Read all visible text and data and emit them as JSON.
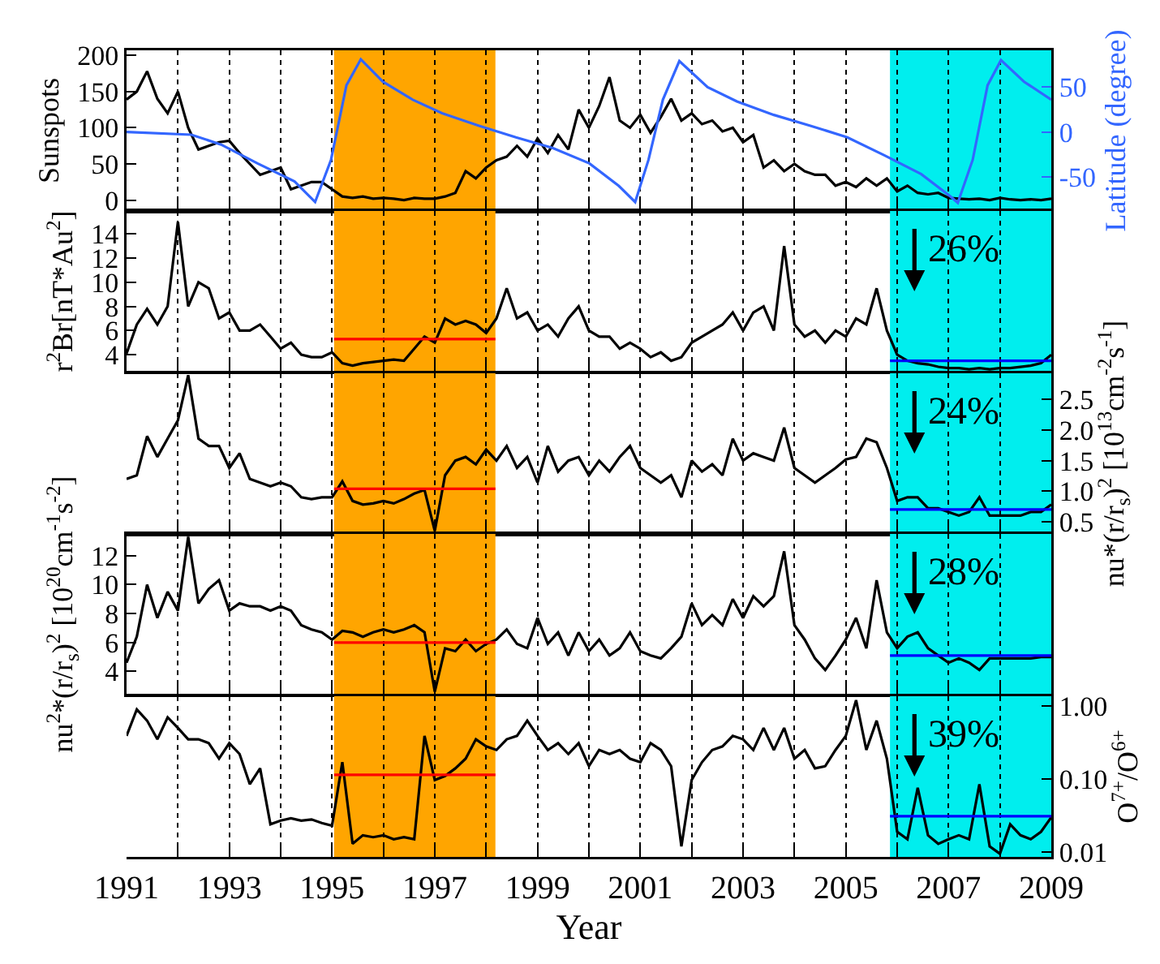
{
  "chart_data": [
    {
      "type": "line",
      "ylabel": "Sunspots",
      "y2label": "Latitude (degree)",
      "xlim": [
        1991,
        2009
      ],
      "xticks": [
        1991,
        {
          "value": 1992,
          "label": null
        },
        1993,
        {
          "value": 1994,
          "label": null
        },
        1995,
        {
          "value": 1996,
          "label": null
        },
        1997,
        {
          "value": 1998,
          "label": null
        },
        1999,
        {
          "value": 2000,
          "label": null
        },
        2001,
        {
          "value": 2002,
          "label": null
        },
        2003,
        {
          "value": 2004,
          "label": null
        },
        2005,
        {
          "value": 2006,
          "label": null
        },
        2007,
        {
          "value": 2008,
          "label": null
        },
        2009
      ],
      "ylim": [
        -15,
        207
      ],
      "yticks": [
        0,
        50,
        100,
        150,
        200
      ],
      "y2lim": [
        -88,
        91
      ],
      "y2ticks": [
        -50,
        0,
        50
      ],
      "grid": "x",
      "tick_labels": "y",
      "x": [
        1991,
        1991.2,
        1991.4,
        1991.6,
        1991.8,
        1992,
        1992.2,
        1992.4,
        1992.6,
        1992.8,
        1993,
        1993.2,
        1993.4,
        1993.6,
        1993.8,
        1994,
        1994.2,
        1994.4,
        1994.6,
        1994.8,
        1995,
        1995.2,
        1995.4,
        1995.6,
        1995.8,
        1996,
        1996.2,
        1996.4,
        1996.6,
        1996.8,
        1997,
        1997.2,
        1997.4,
        1997.6,
        1997.8,
        1998,
        1998.2,
        1998.4,
        1998.6,
        1998.8,
        1999,
        1999.2,
        1999.4,
        1999.6,
        1999.8,
        2000,
        2000.2,
        2000.4,
        2000.6,
        2000.8,
        2001,
        2001.2,
        2001.4,
        2001.6,
        2001.8,
        2002,
        2002.2,
        2002.4,
        2002.6,
        2002.8,
        2003,
        2003.2,
        2003.4,
        2003.6,
        2003.8,
        2004,
        2004.2,
        2004.4,
        2004.6,
        2004.8,
        2005,
        2005.2,
        2005.4,
        2005.6,
        2005.8,
        2006,
        2006.2,
        2006.4,
        2006.6,
        2006.8,
        2007,
        2007.2,
        2007.4,
        2007.6,
        2007.8,
        2008,
        2008.2,
        2008.4,
        2008.6,
        2008.8,
        2009
      ],
      "bands": [
        {
          "axis": "x",
          "from": 1995.04,
          "to": 1998.18,
          "color": "#ffa500"
        },
        {
          "axis": "x",
          "from": 2005.86,
          "to": 2009,
          "color": "#00eeee"
        }
      ],
      "series": [
        {
          "color": "#000000",
          "values": [
            139,
            150,
            178,
            140,
            120,
            150,
            100,
            70,
            75,
            80,
            82,
            65,
            50,
            35,
            40,
            45,
            15,
            20,
            25,
            25,
            15,
            5,
            3,
            5,
            2,
            3,
            2,
            0,
            3,
            2,
            2,
            5,
            10,
            40,
            30,
            45,
            55,
            60,
            75,
            60,
            85,
            65,
            90,
            70,
            125,
            100,
            130,
            170,
            110,
            100,
            118,
            93,
            115,
            140,
            110,
            120,
            105,
            110,
            95,
            100,
            80,
            90,
            45,
            55,
            40,
            50,
            40,
            35,
            35,
            20,
            25,
            18,
            30,
            20,
            30,
            12,
            20,
            10,
            8,
            10,
            3,
            2,
            1,
            2,
            0,
            3,
            1,
            0,
            1,
            0,
            2
          ]
        },
        {
          "color": "#3366ff",
          "axis": "y2",
          "x": [
            1991,
            1992.26,
            1992.84,
            1993.55,
            1994.27,
            1994.67,
            1994.98,
            1995.28,
            1995.56,
            1995.99,
            1996.57,
            1997.14,
            1997.86,
            1998.58,
            1999.3,
            2000.01,
            2000.58,
            2000.9,
            2001.16,
            2001.44,
            2001.76,
            2002.31,
            2002.88,
            2003.6,
            2004.31,
            2005.03,
            2005.75,
            2006.47,
            2007.04,
            2007.18,
            2007.47,
            2007.76,
            2008.02,
            2008.47,
            2009
          ],
          "values": [
            0,
            -3,
            -14,
            -35,
            -55,
            -78,
            -31,
            52,
            81,
            56,
            36,
            21,
            7,
            -6,
            -18,
            -35,
            -60,
            -78,
            -31,
            36,
            79,
            50,
            34,
            19,
            7,
            -6,
            -26,
            -47,
            -72,
            -79,
            -31,
            52,
            80,
            56,
            36
          ]
        }
      ]
    },
    {
      "type": "line",
      "ylabel": "r$^{2}$Br[nT*Au$^{2}$]",
      "xlim": [
        1991,
        2009
      ],
      "xticks": [
        1991,
        {
          "value": 1992,
          "label": null
        },
        1993,
        {
          "value": 1994,
          "label": null
        },
        1995,
        {
          "value": 1996,
          "label": null
        },
        1997,
        {
          "value": 1998,
          "label": null
        },
        1999,
        {
          "value": 2000,
          "label": null
        },
        2001,
        {
          "value": 2002,
          "label": null
        },
        2003,
        {
          "value": 2004,
          "label": null
        },
        2005,
        {
          "value": 2006,
          "label": null
        },
        2007,
        {
          "value": 2008,
          "label": null
        },
        2009
      ],
      "ylim": [
        2.6,
        15.9
      ],
      "yticks": [
        4,
        6,
        8,
        10,
        12,
        14
      ],
      "grid": "x",
      "tick_labels": "y",
      "x": [
        1991,
        1991.2,
        1991.4,
        1991.6,
        1991.8,
        1992,
        1992.2,
        1992.4,
        1992.6,
        1992.8,
        1993,
        1993.2,
        1993.4,
        1993.6,
        1993.8,
        1994,
        1994.2,
        1994.4,
        1994.6,
        1994.8,
        1995,
        1995.2,
        1995.4,
        1995.6,
        1995.8,
        1996,
        1996.2,
        1996.4,
        1996.6,
        1996.8,
        1997,
        1997.2,
        1997.4,
        1997.6,
        1997.8,
        1998,
        1998.2,
        1998.4,
        1998.6,
        1998.8,
        1999,
        1999.2,
        1999.4,
        1999.6,
        1999.8,
        2000,
        2000.2,
        2000.4,
        2000.6,
        2000.8,
        2001,
        2001.2,
        2001.4,
        2001.6,
        2001.8,
        2002,
        2002.2,
        2002.4,
        2002.6,
        2002.8,
        2003,
        2003.2,
        2003.4,
        2003.6,
        2003.8,
        2004,
        2004.2,
        2004.4,
        2004.6,
        2004.8,
        2005,
        2005.2,
        2005.4,
        2005.6,
        2005.8,
        2006,
        2006.2,
        2006.4,
        2006.6,
        2006.8,
        2007,
        2007.2,
        2007.4,
        2007.6,
        2007.8,
        2008,
        2008.2,
        2008.4,
        2008.6,
        2008.8,
        2009
      ],
      "bands": [
        {
          "axis": "x",
          "from": 1995.04,
          "to": 1998.18,
          "color": "#ffa500"
        },
        {
          "axis": "x",
          "from": 2005.86,
          "to": 2009,
          "color": "#00eeee"
        }
      ],
      "annotations": [
        "26%"
      ],
      "series": [
        {
          "color": "#000000",
          "values": [
            4.1,
            6.5,
            7.8,
            6.5,
            8,
            15,
            8,
            10,
            9.5,
            7,
            7.5,
            6,
            6,
            6.5,
            5.5,
            4.5,
            5,
            4,
            3.8,
            3.8,
            4.2,
            3.3,
            3.1,
            3.3,
            3.4,
            3.5,
            3.6,
            3.5,
            4.5,
            5.5,
            5,
            7,
            6.5,
            6.8,
            6.5,
            5.8,
            7,
            9.5,
            7,
            7.5,
            6,
            6.5,
            5.5,
            7,
            8,
            6,
            5.5,
            5.5,
            4.5,
            5,
            4.5,
            3.8,
            4.2,
            3.5,
            3.8,
            5,
            5.5,
            6,
            6.5,
            7.5,
            6,
            7.5,
            8,
            6,
            13,
            6.5,
            5.5,
            6,
            5,
            6,
            5.5,
            7,
            6.5,
            9.5,
            6,
            4,
            3.5,
            3.3,
            3.2,
            3,
            2.9,
            2.9,
            2.8,
            2.9,
            2.8,
            2.9,
            2.9,
            3,
            3.1,
            3.3,
            4
          ]
        },
        {
          "color": "#ff0000",
          "x": [
            1995.04,
            1998.18
          ],
          "values": [
            5.3,
            5.3
          ]
        },
        {
          "color": "#0000ff",
          "x": [
            2005.86,
            2009
          ],
          "values": [
            3.5,
            3.5
          ]
        }
      ]
    },
    {
      "type": "line",
      "y2label": "nu*(r/r$_{s}$)$^{2}$ [10$^{13}$cm$^{-2}$s$^{-1}$]",
      "xlim": [
        1991,
        2009
      ],
      "xticks": [
        1991,
        {
          "value": 1992,
          "label": null
        },
        1993,
        {
          "value": 1994,
          "label": null
        },
        1995,
        {
          "value": 1996,
          "label": null
        },
        1997,
        {
          "value": 1998,
          "label": null
        },
        1999,
        {
          "value": 2000,
          "label": null
        },
        2001,
        {
          "value": 2002,
          "label": null
        },
        2003,
        {
          "value": 2004,
          "label": null
        },
        2005,
        {
          "value": 2006,
          "label": null
        },
        2007,
        {
          "value": 2008,
          "label": null
        },
        2009
      ],
      "y2lim": [
        0.3,
        2.93
      ],
      "y2ticks": [
        {
          "value": 0.5,
          "label": "0.5"
        },
        {
          "value": 1,
          "label": "1.0"
        },
        {
          "value": 1.5,
          "label": "1.5"
        },
        {
          "value": 2,
          "label": "2.0"
        },
        {
          "value": 2.5,
          "label": "2.5"
        }
      ],
      "grid": "x",
      "tick_labels": false,
      "x": [
        1991,
        1991.2,
        1991.4,
        1991.6,
        1991.8,
        1992,
        1992.2,
        1992.4,
        1992.6,
        1992.8,
        1993,
        1993.2,
        1993.4,
        1993.6,
        1993.8,
        1994,
        1994.2,
        1994.4,
        1994.6,
        1994.8,
        1995,
        1995.2,
        1995.4,
        1995.6,
        1995.8,
        1996,
        1996.2,
        1996.4,
        1996.6,
        1996.8,
        1997,
        1997.2,
        1997.4,
        1997.6,
        1997.8,
        1998,
        1998.2,
        1998.4,
        1998.6,
        1998.8,
        1999,
        1999.2,
        1999.4,
        1999.6,
        1999.8,
        2000,
        2000.2,
        2000.4,
        2000.6,
        2000.8,
        2001,
        2001.2,
        2001.4,
        2001.6,
        2001.8,
        2002,
        2002.2,
        2002.4,
        2002.6,
        2002.8,
        2003,
        2003.2,
        2003.4,
        2003.6,
        2003.8,
        2004,
        2004.2,
        2004.4,
        2004.6,
        2004.8,
        2005,
        2005.2,
        2005.4,
        2005.6,
        2005.8,
        2006,
        2006.2,
        2006.4,
        2006.6,
        2006.8,
        2007,
        2007.2,
        2007.4,
        2007.6,
        2007.8,
        2008,
        2008.2,
        2008.4,
        2008.6,
        2008.8,
        2009
      ],
      "bands": [
        {
          "axis": "x",
          "from": 1995.04,
          "to": 1998.18,
          "color": "#ffa500"
        },
        {
          "axis": "x",
          "from": 2005.86,
          "to": 2009,
          "color": "#00eeee"
        }
      ],
      "annotations": [
        "24%"
      ],
      "series": [
        {
          "color": "#000000",
          "axis": "y2",
          "values": [
            1.2,
            1.26,
            1.9,
            1.56,
            1.86,
            2.16,
            2.9,
            1.86,
            1.74,
            1.74,
            1.38,
            1.62,
            1.2,
            1.14,
            1.08,
            1.14,
            1.08,
            0.9,
            0.87,
            0.9,
            0.9,
            1.16,
            0.84,
            0.78,
            0.8,
            0.84,
            0.8,
            0.87,
            0.96,
            1.02,
            0.35,
            1.26,
            1.5,
            1.56,
            1.44,
            1.68,
            1.5,
            1.74,
            1.38,
            1.56,
            1.14,
            1.74,
            1.32,
            1.5,
            1.56,
            1.26,
            1.5,
            1.32,
            1.56,
            1.74,
            1.38,
            1.26,
            1.14,
            1.26,
            0.9,
            1.5,
            1.32,
            1.44,
            1.26,
            1.86,
            1.5,
            1.62,
            1.56,
            1.5,
            2.04,
            1.38,
            1.26,
            1.14,
            1.26,
            1.38,
            1.52,
            1.56,
            1.86,
            1.8,
            1.38,
            0.84,
            0.9,
            0.9,
            0.72,
            0.72,
            0.66,
            0.6,
            0.66,
            0.9,
            0.6,
            0.6,
            0.6,
            0.6,
            0.66,
            0.66,
            0.78
          ]
        },
        {
          "color": "#ff0000",
          "axis": "y2",
          "x": [
            1995.04,
            1998.18
          ],
          "values": [
            1.04,
            1.04
          ]
        },
        {
          "color": "#0000ff",
          "axis": "y2",
          "x": [
            2005.86,
            2009
          ],
          "values": [
            0.7,
            0.7
          ]
        }
      ]
    },
    {
      "type": "line",
      "ylabel": "nu$^{2}$*(r/r$_{s}$)$^{2}$ [10$^{20}$cm$^{-1}$s$^{-2}$]",
      "xlim": [
        1991,
        2009
      ],
      "xticks": [
        1991,
        {
          "value": 1992,
          "label": null
        },
        1993,
        {
          "value": 1994,
          "label": null
        },
        1995,
        {
          "value": 1996,
          "label": null
        },
        1997,
        {
          "value": 1998,
          "label": null
        },
        1999,
        {
          "value": 2000,
          "label": null
        },
        2001,
        {
          "value": 2002,
          "label": null
        },
        2003,
        {
          "value": 2004,
          "label": null
        },
        2005,
        {
          "value": 2006,
          "label": null
        },
        2007,
        {
          "value": 2008,
          "label": null
        },
        2009
      ],
      "ylim": [
        2.4,
        13.5
      ],
      "yticks": [
        4,
        6,
        8,
        10,
        12
      ],
      "grid": "x",
      "tick_labels": "y",
      "x": [
        1991,
        1991.2,
        1991.4,
        1991.6,
        1991.8,
        1992,
        1992.2,
        1992.4,
        1992.6,
        1992.8,
        1993,
        1993.2,
        1993.4,
        1993.6,
        1993.8,
        1994,
        1994.2,
        1994.4,
        1994.6,
        1994.8,
        1995,
        1995.2,
        1995.4,
        1995.6,
        1995.8,
        1996,
        1996.2,
        1996.4,
        1996.6,
        1996.8,
        1997,
        1997.2,
        1997.4,
        1997.6,
        1997.8,
        1998,
        1998.2,
        1998.4,
        1998.6,
        1998.8,
        1999,
        1999.2,
        1999.4,
        1999.6,
        1999.8,
        2000,
        2000.2,
        2000.4,
        2000.6,
        2000.8,
        2001,
        2001.2,
        2001.4,
        2001.6,
        2001.8,
        2002,
        2002.2,
        2002.4,
        2002.6,
        2002.8,
        2003,
        2003.2,
        2003.4,
        2003.6,
        2003.8,
        2004,
        2004.2,
        2004.4,
        2004.6,
        2004.8,
        2005,
        2005.2,
        2005.4,
        2005.6,
        2005.8,
        2006,
        2006.2,
        2006.4,
        2006.6,
        2006.8,
        2007,
        2007.2,
        2007.4,
        2007.6,
        2007.8,
        2008,
        2008.2,
        2008.4,
        2008.6,
        2008.8,
        2009
      ],
      "bands": [
        {
          "axis": "x",
          "from": 1995.04,
          "to": 1998.18,
          "color": "#ffa500"
        },
        {
          "axis": "x",
          "from": 2005.86,
          "to": 2009,
          "color": "#00eeee"
        }
      ],
      "annotations": [
        "28%"
      ],
      "series": [
        {
          "color": "#000000",
          "values": [
            4.6,
            6.4,
            10,
            7.7,
            9.5,
            8.2,
            13.3,
            8.7,
            9.7,
            10.3,
            8.2,
            8.7,
            8.5,
            8.5,
            8.2,
            8.5,
            8.2,
            7.2,
            6.9,
            6.7,
            6.2,
            6.8,
            6.7,
            6.4,
            6.7,
            6.9,
            6.7,
            6.9,
            7.2,
            6.7,
            2.6,
            5.6,
            5.4,
            6.2,
            5.4,
            5.9,
            6.2,
            6.9,
            5.9,
            5.6,
            7.7,
            5.9,
            6.7,
            5.1,
            6.7,
            5.4,
            6.2,
            5.1,
            5.6,
            6.7,
            5.4,
            5.1,
            4.9,
            5.6,
            6.4,
            8.7,
            7.2,
            7.9,
            7.2,
            9,
            7.7,
            9.2,
            8.5,
            9.2,
            12.3,
            7.2,
            6.2,
            4.9,
            4.1,
            5.1,
            6.2,
            7.7,
            5.6,
            10.3,
            6.7,
            5.6,
            6.4,
            6.7,
            5.6,
            5.1,
            4.6,
            4.9,
            4.6,
            4.1,
            4.9,
            4.9,
            4.9,
            4.9,
            4.9,
            5,
            5
          ]
        },
        {
          "color": "#ff0000",
          "x": [
            1995.04,
            1998.18
          ],
          "values": [
            6,
            6
          ]
        },
        {
          "color": "#0000ff",
          "x": [
            2005.86,
            2009
          ],
          "values": [
            5.1,
            5.1
          ]
        }
      ]
    },
    {
      "type": "line",
      "xlabel": "Year",
      "y2label": "O$^{7+}$/O$^{6+}$",
      "log": "y2",
      "xlim": [
        1991,
        2009
      ],
      "xticks": [
        1991,
        {
          "value": 1992,
          "label": null
        },
        1993,
        {
          "value": 1994,
          "label": null
        },
        1995,
        {
          "value": 1996,
          "label": null
        },
        1997,
        {
          "value": 1998,
          "label": null
        },
        1999,
        {
          "value": 2000,
          "label": null
        },
        2001,
        {
          "value": 2002,
          "label": null
        },
        2003,
        {
          "value": 2004,
          "label": null
        },
        2005,
        {
          "value": 2006,
          "label": null
        },
        2007,
        {
          "value": 2008,
          "label": null
        },
        2009
      ],
      "y2lim": [
        0.0086,
        1.36
      ],
      "y2ticks": [
        {
          "value": 0.01,
          "label": "0.01"
        },
        {
          "value": 0.1,
          "label": "0.10"
        },
        {
          "value": 1,
          "label": "1.00"
        }
      ],
      "grid": "x",
      "tick_labels": "x",
      "x": [
        1991,
        1991.2,
        1991.4,
        1991.6,
        1991.8,
        1992,
        1992.2,
        1992.4,
        1992.6,
        1992.8,
        1993,
        1993.2,
        1993.4,
        1993.6,
        1993.8,
        1994,
        1994.2,
        1994.4,
        1994.6,
        1994.8,
        1995,
        1995.2,
        1995.4,
        1995.6,
        1995.8,
        1996,
        1996.2,
        1996.4,
        1996.6,
        1996.8,
        1997,
        1997.2,
        1997.4,
        1997.6,
        1997.8,
        1998,
        1998.2,
        1998.4,
        1998.6,
        1998.8,
        1999,
        1999.2,
        1999.4,
        1999.6,
        1999.8,
        2000,
        2000.2,
        2000.4,
        2000.6,
        2000.8,
        2001,
        2001.2,
        2001.4,
        2001.6,
        2001.8,
        2002,
        2002.2,
        2002.4,
        2002.6,
        2002.8,
        2003,
        2003.2,
        2003.4,
        2003.6,
        2003.8,
        2004,
        2004.2,
        2004.4,
        2004.6,
        2004.8,
        2005,
        2005.2,
        2005.4,
        2005.6,
        2005.8,
        2006,
        2006.2,
        2006.4,
        2006.6,
        2006.8,
        2007,
        2007.2,
        2007.4,
        2007.6,
        2007.8,
        2008,
        2008.2,
        2008.4,
        2008.6,
        2008.8,
        2009
      ],
      "bands": [
        {
          "axis": "x",
          "from": 1995.04,
          "to": 1998.18,
          "color": "#ffa500"
        },
        {
          "axis": "x",
          "from": 2005.86,
          "to": 2009,
          "color": "#00eeee"
        }
      ],
      "annotations": [
        "39%"
      ],
      "series": [
        {
          "color": "#000000",
          "axis": "y2",
          "values": [
            0.39,
            0.9,
            0.63,
            0.35,
            0.7,
            0.5,
            0.35,
            0.35,
            0.31,
            0.19,
            0.31,
            0.22,
            0.085,
            0.14,
            0.024,
            0.027,
            0.029,
            0.027,
            0.028,
            0.025,
            0.023,
            0.17,
            0.013,
            0.017,
            0.016,
            0.017,
            0.015,
            0.016,
            0.015,
            0.39,
            0.097,
            0.11,
            0.14,
            0.19,
            0.35,
            0.28,
            0.25,
            0.35,
            0.39,
            0.63,
            0.39,
            0.25,
            0.31,
            0.22,
            0.31,
            0.15,
            0.25,
            0.22,
            0.25,
            0.19,
            0.17,
            0.31,
            0.25,
            0.15,
            0.012,
            0.097,
            0.17,
            0.25,
            0.28,
            0.39,
            0.35,
            0.25,
            0.5,
            0.25,
            0.5,
            0.19,
            0.25,
            0.14,
            0.15,
            0.25,
            0.39,
            1.2,
            0.25,
            0.63,
            0.19,
            0.019,
            0.015,
            0.076,
            0.017,
            0.013,
            0.015,
            0.017,
            0.015,
            0.085,
            0.012,
            0.0095,
            0.024,
            0.017,
            0.015,
            0.019,
            0.03
          ]
        },
        {
          "color": "#ff0000",
          "axis": "y2",
          "x": [
            1995.04,
            1998.18
          ],
          "values": [
            0.114,
            0.114
          ]
        },
        {
          "color": "#0000ff",
          "axis": "y2",
          "x": [
            2005.86,
            2009
          ],
          "values": [
            0.031,
            0.031
          ]
        }
      ]
    }
  ]
}
